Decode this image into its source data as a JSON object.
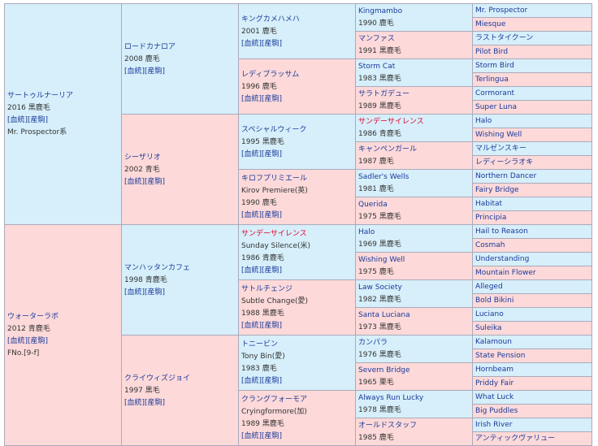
{
  "g1": [
    {
      "name": "サートゥルナーリア",
      "lines": [
        "2016 黒鹿毛",
        "[血統][産駒]",
        "Mr. Prospector系"
      ],
      "sex": "m"
    },
    {
      "name": "ウォーターラボ",
      "lines": [
        "2012 青鹿毛",
        "[血統][産駒]",
        "FNo.[9-f]"
      ],
      "sex": "f"
    }
  ],
  "g2": [
    {
      "name": "ロードカナロア",
      "lines": [
        "2008 鹿毛",
        "[血統][産駒]"
      ],
      "sex": "m"
    },
    {
      "name": "シーザリオ",
      "lines": [
        "2002 青毛",
        "[血統][産駒]"
      ],
      "sex": "f"
    },
    {
      "name": "マンハッタンカフェ",
      "lines": [
        "1998 青鹿毛",
        "[血統][産駒]"
      ],
      "sex": "m"
    },
    {
      "name": "クライウィズジョイ",
      "lines": [
        "1997 黒毛",
        "[血統][産駒]"
      ],
      "sex": "f"
    }
  ],
  "g3": [
    {
      "name": "キングカメハメハ",
      "lines": [
        "2001 鹿毛",
        "[血統][産駒]"
      ],
      "sex": "m",
      "red": false
    },
    {
      "name": "レディブラッサム",
      "lines": [
        "1996 鹿毛",
        "[血統][産駒]"
      ],
      "sex": "f",
      "red": false
    },
    {
      "name": "スペシャルウィーク",
      "lines": [
        "1995 黒鹿毛",
        "[血統][産駒]"
      ],
      "sex": "m",
      "red": false
    },
    {
      "name": "キロフプリミエール",
      "lines": [
        "Kirov Premiere(英)",
        "1990 鹿毛",
        "[血統][産駒]"
      ],
      "sex": "f",
      "red": false
    },
    {
      "name": "サンデーサイレンス",
      "lines": [
        "Sunday Silence(米)",
        "1986 青鹿毛",
        "[血統][産駒]"
      ],
      "sex": "m",
      "red": true
    },
    {
      "name": "サトルチェンジ",
      "lines": [
        "Subtle Change(愛)",
        "1988 黒鹿毛",
        "[血統][産駒]"
      ],
      "sex": "f",
      "red": false
    },
    {
      "name": "トニービン",
      "lines": [
        "Tony Bin(愛)",
        "1983 鹿毛",
        "[血統][産駒]"
      ],
      "sex": "m",
      "red": false
    },
    {
      "name": "クラングフォーモア",
      "lines": [
        "Cryingformore(加)",
        "1989 黒鹿毛",
        "[血統][産駒]"
      ],
      "sex": "f",
      "red": false
    }
  ],
  "g4": [
    {
      "name": "Kingmambo",
      "year": "1990 鹿毛",
      "sex": "m",
      "red": false
    },
    {
      "name": "マンファス",
      "year": "1991 黒鹿毛",
      "sex": "f",
      "red": false
    },
    {
      "name": "Storm Cat",
      "year": "1983 黒鹿毛",
      "sex": "m",
      "red": false
    },
    {
      "name": "サラトガデュー",
      "year": "1989 黒鹿毛",
      "sex": "f",
      "red": false
    },
    {
      "name": "サンデーサイレンス",
      "year": "1986 青鹿毛",
      "sex": "m",
      "red": true
    },
    {
      "name": "キャンペンガール",
      "year": "1987 鹿毛",
      "sex": "f",
      "red": false
    },
    {
      "name": "Sadler's Wells",
      "year": "1981 鹿毛",
      "sex": "m",
      "red": false
    },
    {
      "name": "Querida",
      "year": "1975 黒鹿毛",
      "sex": "f",
      "red": false
    },
    {
      "name": "Halo",
      "year": "1969 黒鹿毛",
      "sex": "m",
      "red": false
    },
    {
      "name": "Wishing Well",
      "year": "1975 鹿毛",
      "sex": "f",
      "red": false
    },
    {
      "name": "Law Society",
      "year": "1982 黒鹿毛",
      "sex": "m",
      "red": false
    },
    {
      "name": "Santa Luciana",
      "year": "1973 黒鹿毛",
      "sex": "f",
      "red": false
    },
    {
      "name": "カンパラ",
      "year": "1976 黒鹿毛",
      "sex": "m",
      "red": false
    },
    {
      "name": "Severn Bridge",
      "year": "1965 栗毛",
      "sex": "f",
      "red": false
    },
    {
      "name": "Always Run Lucky",
      "year": "1978 黒鹿毛",
      "sex": "m",
      "red": false
    },
    {
      "name": "オールドスタッフ",
      "year": "1985 鹿毛",
      "sex": "f",
      "red": false
    }
  ],
  "g5": [
    {
      "name": "Mr. Prospector",
      "sex": "m"
    },
    {
      "name": "Miesque",
      "sex": "f"
    },
    {
      "name": "ラストタイクーン",
      "sex": "m"
    },
    {
      "name": "Pilot Bird",
      "sex": "f"
    },
    {
      "name": "Storm Bird",
      "sex": "m"
    },
    {
      "name": "Terlingua",
      "sex": "f"
    },
    {
      "name": "Cormorant",
      "sex": "m"
    },
    {
      "name": "Super Luna",
      "sex": "f"
    },
    {
      "name": "Halo",
      "sex": "m"
    },
    {
      "name": "Wishing Well",
      "sex": "f"
    },
    {
      "name": "マルゼンスキー",
      "sex": "m"
    },
    {
      "name": "レディーシラオキ",
      "sex": "f"
    },
    {
      "name": "Northern Dancer",
      "sex": "m"
    },
    {
      "name": "Fairy Bridge",
      "sex": "f"
    },
    {
      "name": "Habitat",
      "sex": "m"
    },
    {
      "name": "Principia",
      "sex": "f"
    },
    {
      "name": "Hail to Reason",
      "sex": "m"
    },
    {
      "name": "Cosmah",
      "sex": "f"
    },
    {
      "name": "Understanding",
      "sex": "m"
    },
    {
      "name": "Mountain Flower",
      "sex": "f"
    },
    {
      "name": "Alleged",
      "sex": "m"
    },
    {
      "name": "Bold Bikini",
      "sex": "f"
    },
    {
      "name": "Luciano",
      "sex": "m"
    },
    {
      "name": "Suleika",
      "sex": "f"
    },
    {
      "name": "Kalamoun",
      "sex": "m"
    },
    {
      "name": "State Pension",
      "sex": "f"
    },
    {
      "name": "Hornbeam",
      "sex": "m"
    },
    {
      "name": "Priddy Fair",
      "sex": "f"
    },
    {
      "name": "What Luck",
      "sex": "m"
    },
    {
      "name": "Big Puddles",
      "sex": "f"
    },
    {
      "name": "Irish River",
      "sex": "m"
    },
    {
      "name": "アンティックヴァリュー",
      "sex": "f"
    }
  ]
}
